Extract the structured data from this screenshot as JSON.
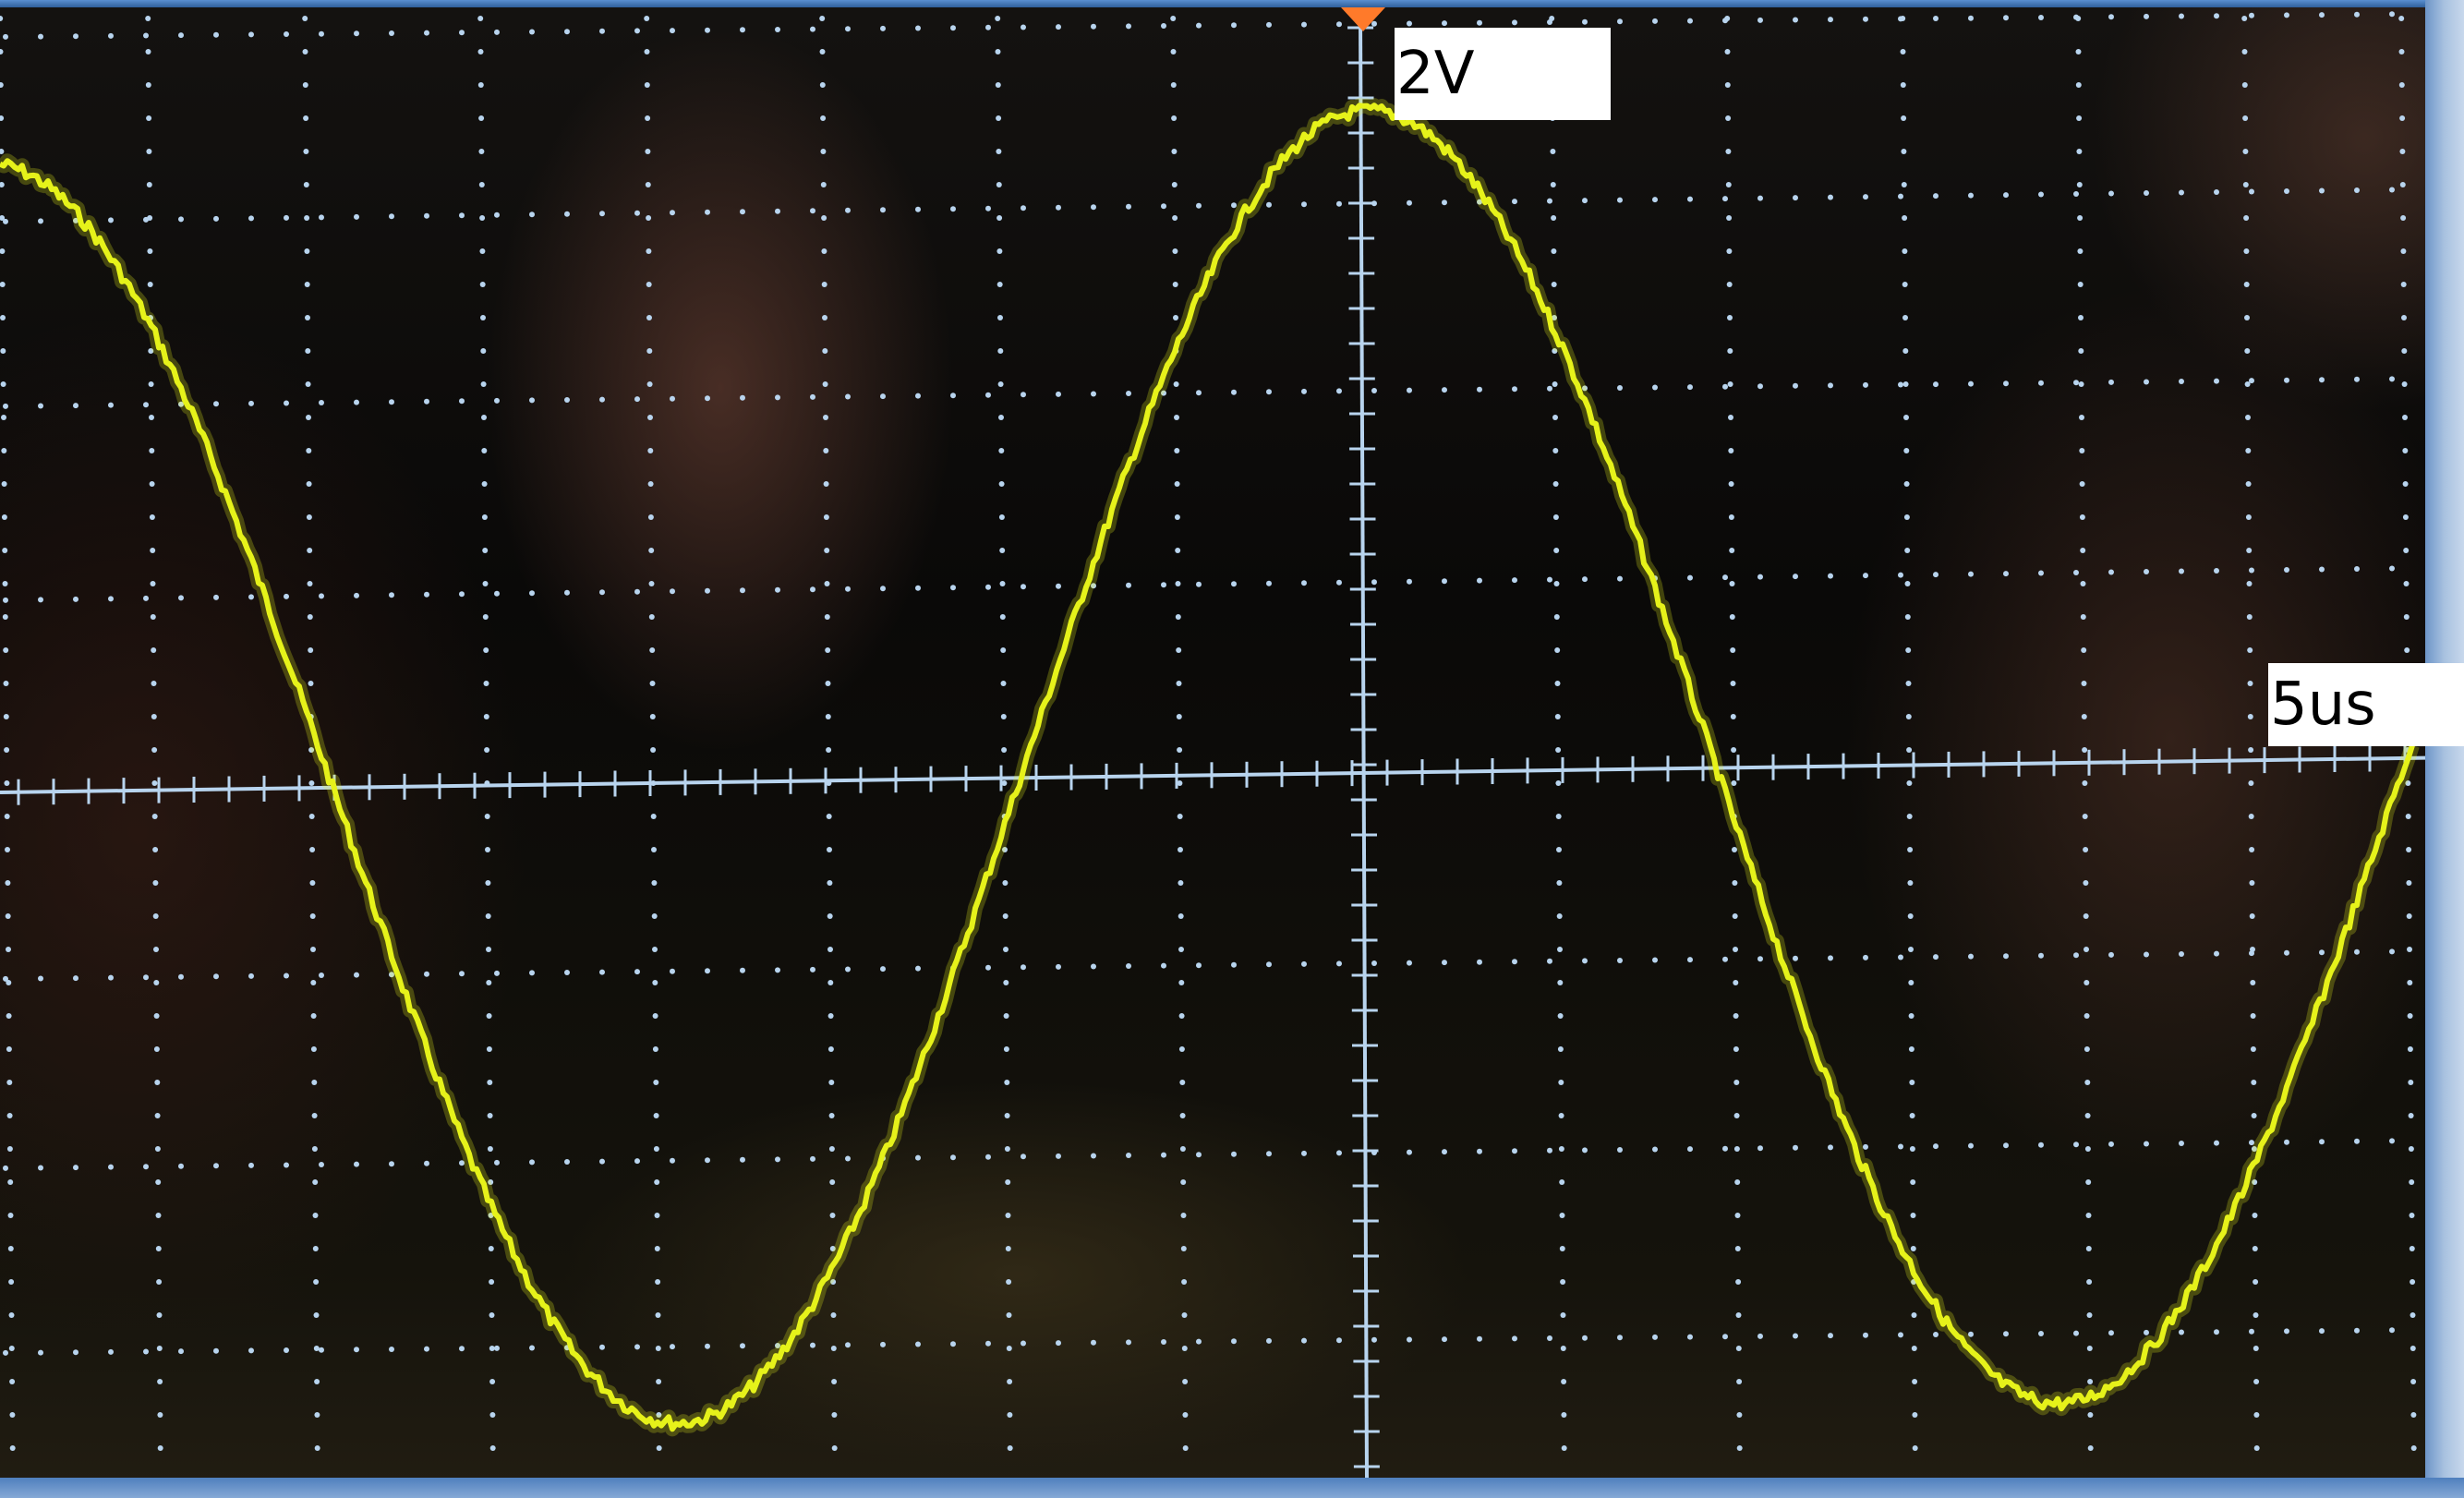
{
  "labels": {
    "volts_per_div": "2V",
    "time_per_div": "5us"
  },
  "trace": {
    "color": "#e6f21a",
    "waveform": "sine"
  },
  "graticule": {
    "color": "#b8d4ee"
  },
  "trigger_marker": {
    "icon": "triangle-down-icon",
    "color": "#ff7a2a"
  }
}
